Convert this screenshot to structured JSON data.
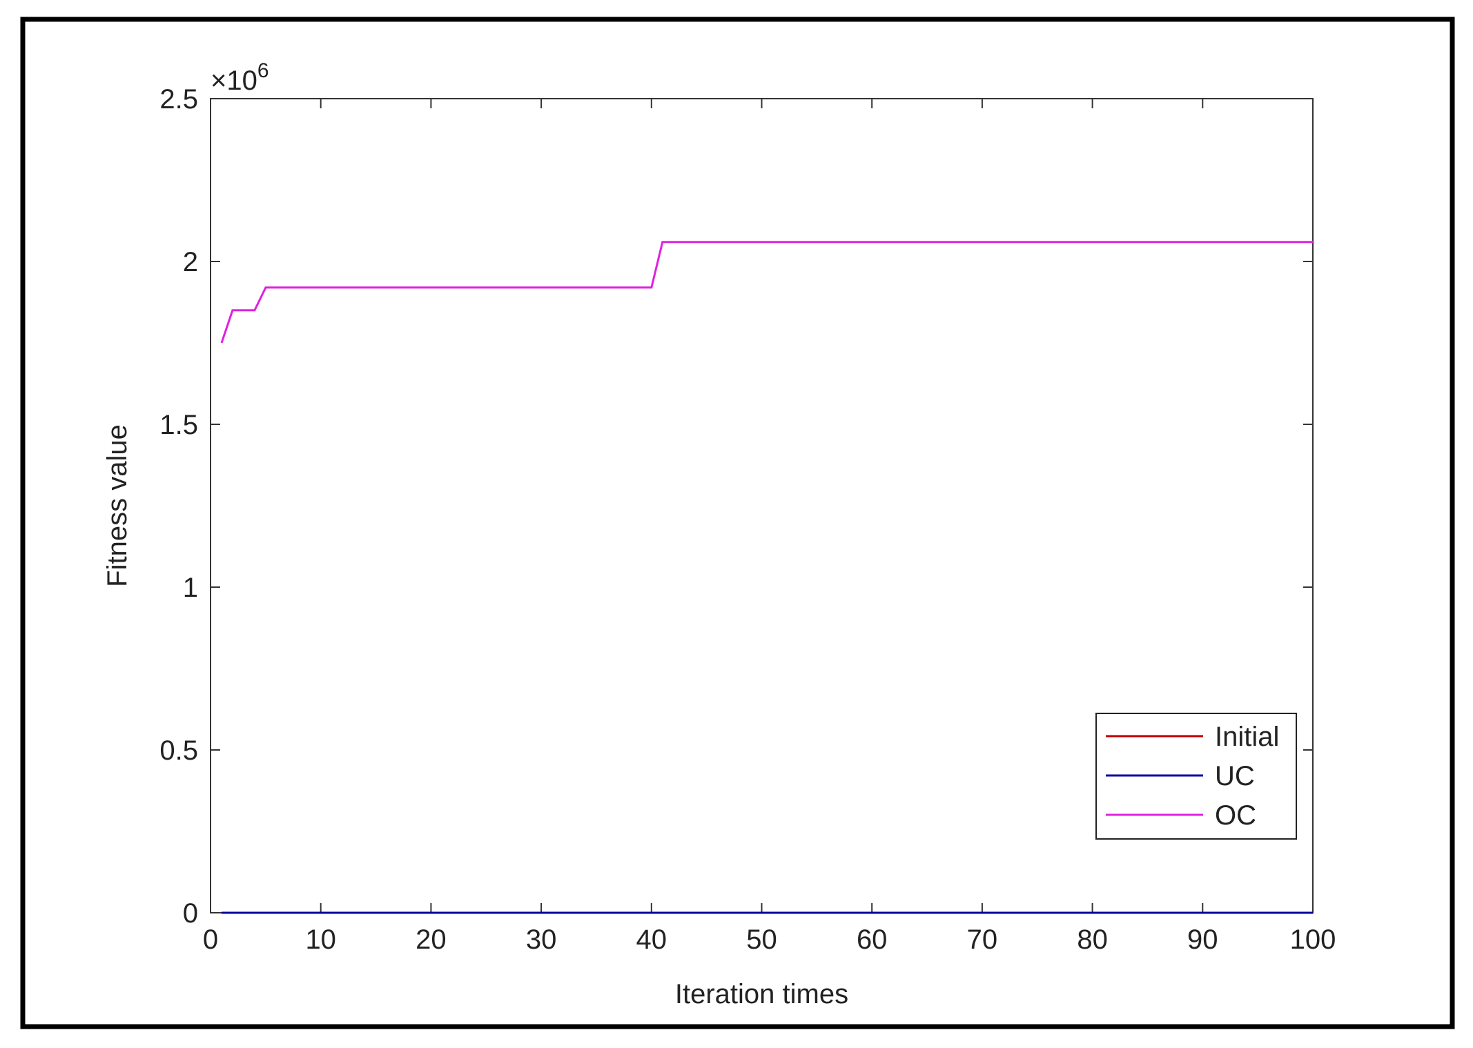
{
  "chart_data": {
    "type": "line",
    "y_label": "Fitness value",
    "x_label": "Iteration times",
    "y_multiplier": "×10",
    "y_multiplier_exponent": "6",
    "x": [
      1,
      2,
      4,
      5,
      40,
      41,
      100
    ],
    "series": [
      {
        "name": "Initial",
        "color": "#c00000",
        "values": [
          0,
          0,
          0,
          0,
          0,
          0,
          0
        ]
      },
      {
        "name": "UC",
        "color": "#0000a0",
        "values": [
          0,
          0,
          0,
          0,
          0,
          0,
          0
        ]
      },
      {
        "name": "OC",
        "color": "#e020e0",
        "values": [
          1.75,
          1.85,
          1.85,
          1.92,
          1.92,
          2.06,
          2.06
        ]
      }
    ],
    "xlim": [
      0,
      100
    ],
    "xticks": [
      0,
      10,
      20,
      30,
      40,
      50,
      60,
      70,
      80,
      90,
      100
    ],
    "ylim": [
      0,
      2.5
    ],
    "yticks": [
      0,
      0.5,
      1,
      1.5,
      2,
      2.5
    ],
    "legend": "lower-right",
    "grid": false
  }
}
